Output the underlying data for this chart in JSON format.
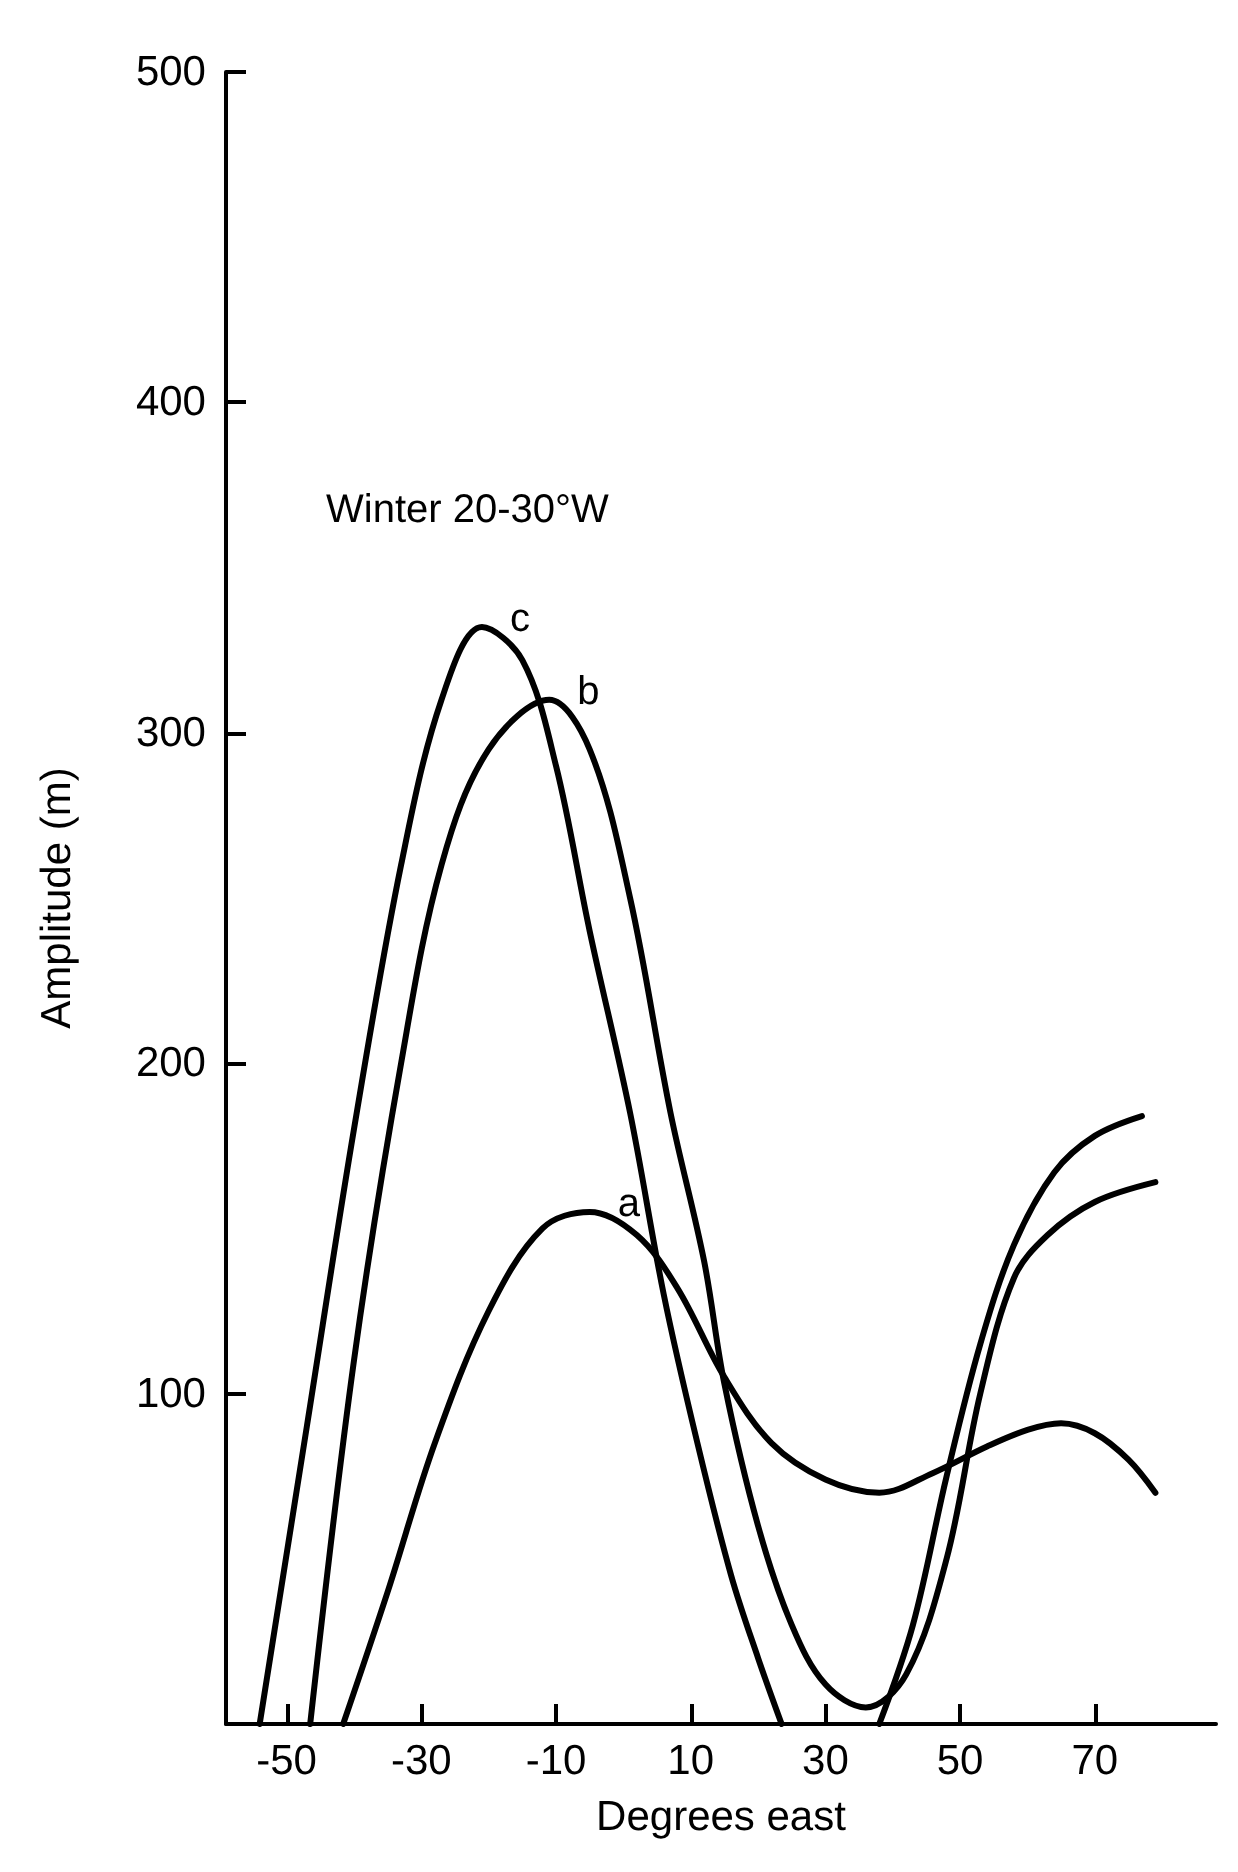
{
  "chart_data": {
    "type": "line",
    "title": "Winter 20-30°W",
    "xlabel": "Degrees east",
    "ylabel": "Amplitude (m)",
    "xlim": [
      -59,
      88
    ],
    "xticks": [
      -50,
      -30,
      -10,
      10,
      30,
      50,
      70
    ],
    "ylim": [
      0,
      500
    ],
    "yticks": [
      100,
      200,
      300,
      400,
      500
    ],
    "grid": false,
    "legend": false,
    "marker": "none",
    "line_style": "solid",
    "series": [
      {
        "name": "a",
        "color": "#000000",
        "x": [
          -41.6,
          -35,
          -28,
          -20,
          -12,
          -5,
          2,
          8,
          15,
          22,
          30,
          38,
          46,
          54,
          60,
          65,
          70,
          75,
          79
        ],
        "values": [
          0,
          40,
          85,
          125,
          150,
          155,
          148,
          132,
          105,
          85,
          74,
          70,
          76,
          84,
          89,
          91,
          88,
          80,
          70
        ]
      },
      {
        "name": "b",
        "color": "#000000",
        "x": [
          -46.5,
          -40,
          -33,
          -27,
          -20,
          -11,
          -5,
          1,
          7,
          12,
          15,
          20,
          25,
          30,
          36,
          42,
          48,
          53,
          58,
          63,
          70,
          79
        ],
        "values": [
          0,
          110,
          200,
          260,
          295,
          310,
          295,
          250,
          185,
          140,
          103,
          60,
          30,
          12,
          5,
          15,
          50,
          100,
          135,
          148,
          158,
          164
        ]
      },
      {
        "name": "c",
        "color": "#000000",
        "x": [
          -54,
          -47,
          -40,
          -33,
          -27,
          -21,
          -15,
          -10,
          -5,
          1,
          6,
          11,
          16,
          20,
          23.5,
          30,
          38,
          43,
          48,
          53,
          58,
          64,
          70,
          77
        ],
        "values": [
          0,
          90,
          180,
          260,
          310,
          332,
          322,
          290,
          240,
          185,
          130,
          85,
          45,
          20,
          0,
          null,
          0,
          30,
          75,
          115,
          145,
          167,
          178,
          184
        ]
      }
    ]
  }
}
